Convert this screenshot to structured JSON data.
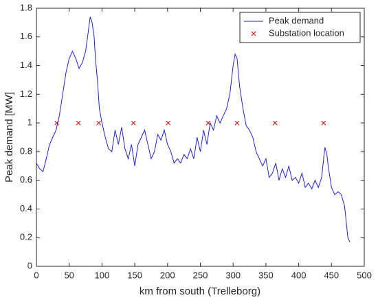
{
  "chart_data": {
    "type": "line",
    "x_label": "km from south (Trelleborg)",
    "y_label": "Peak demand [MW]",
    "xlim": [
      0,
      500
    ],
    "xticks": [
      0,
      50,
      100,
      150,
      200,
      250,
      300,
      350,
      400,
      450,
      500
    ],
    "ylim": [
      0,
      1.8
    ],
    "yticks": [
      0,
      0.2,
      0.4,
      0.6,
      0.8,
      1,
      1.2,
      1.4,
      1.6,
      1.8
    ],
    "grid": false,
    "legend": "upper right",
    "series": [
      {
        "name": "Peak demand",
        "color": "#1f1fe0",
        "type": "line",
        "x": [
          0,
          5,
          10,
          15,
          20,
          25,
          30,
          35,
          40,
          45,
          50,
          55,
          60,
          65,
          70,
          75,
          78,
          82,
          85,
          88,
          90,
          93,
          96,
          100,
          105,
          110,
          115,
          120,
          125,
          130,
          135,
          140,
          145,
          150,
          155,
          160,
          165,
          170,
          175,
          180,
          185,
          190,
          195,
          200,
          205,
          210,
          215,
          220,
          225,
          230,
          235,
          240,
          245,
          250,
          255,
          260,
          265,
          270,
          275,
          280,
          285,
          290,
          295,
          300,
          303,
          306,
          310,
          315,
          320,
          325,
          330,
          335,
          340,
          345,
          350,
          355,
          360,
          365,
          370,
          375,
          380,
          385,
          390,
          395,
          400,
          405,
          410,
          415,
          420,
          425,
          430,
          435,
          440,
          443,
          445,
          450,
          455,
          460,
          465,
          470,
          475,
          478
        ],
        "values": [
          0.72,
          0.68,
          0.66,
          0.75,
          0.85,
          0.9,
          0.95,
          1.05,
          1.2,
          1.35,
          1.45,
          1.5,
          1.45,
          1.38,
          1.42,
          1.5,
          1.6,
          1.74,
          1.7,
          1.6,
          1.45,
          1.3,
          1.1,
          1.0,
          0.9,
          0.82,
          0.8,
          0.95,
          0.85,
          0.97,
          0.82,
          0.75,
          0.85,
          0.7,
          0.85,
          0.9,
          0.95,
          0.85,
          0.75,
          0.8,
          0.92,
          0.88,
          0.95,
          0.85,
          0.8,
          0.72,
          0.75,
          0.72,
          0.78,
          0.75,
          0.82,
          0.75,
          0.9,
          0.8,
          0.95,
          0.85,
          1.0,
          0.95,
          1.05,
          1.0,
          1.05,
          1.1,
          1.2,
          1.4,
          1.48,
          1.45,
          1.25,
          1.1,
          0.98,
          0.95,
          0.9,
          0.8,
          0.75,
          0.7,
          0.75,
          0.62,
          0.65,
          0.72,
          0.6,
          0.68,
          0.62,
          0.7,
          0.6,
          0.62,
          0.58,
          0.65,
          0.55,
          0.58,
          0.54,
          0.6,
          0.55,
          0.62,
          0.83,
          0.78,
          0.7,
          0.55,
          0.5,
          0.52,
          0.5,
          0.42,
          0.2,
          0.17
        ]
      },
      {
        "name": "Substation location",
        "color": "#e00000",
        "type": "scatter",
        "x": [
          31,
          64,
          95,
          148,
          201,
          262,
          306,
          364,
          438
        ],
        "values": [
          1,
          1,
          1,
          1,
          1,
          1,
          1,
          1,
          1
        ]
      }
    ]
  }
}
